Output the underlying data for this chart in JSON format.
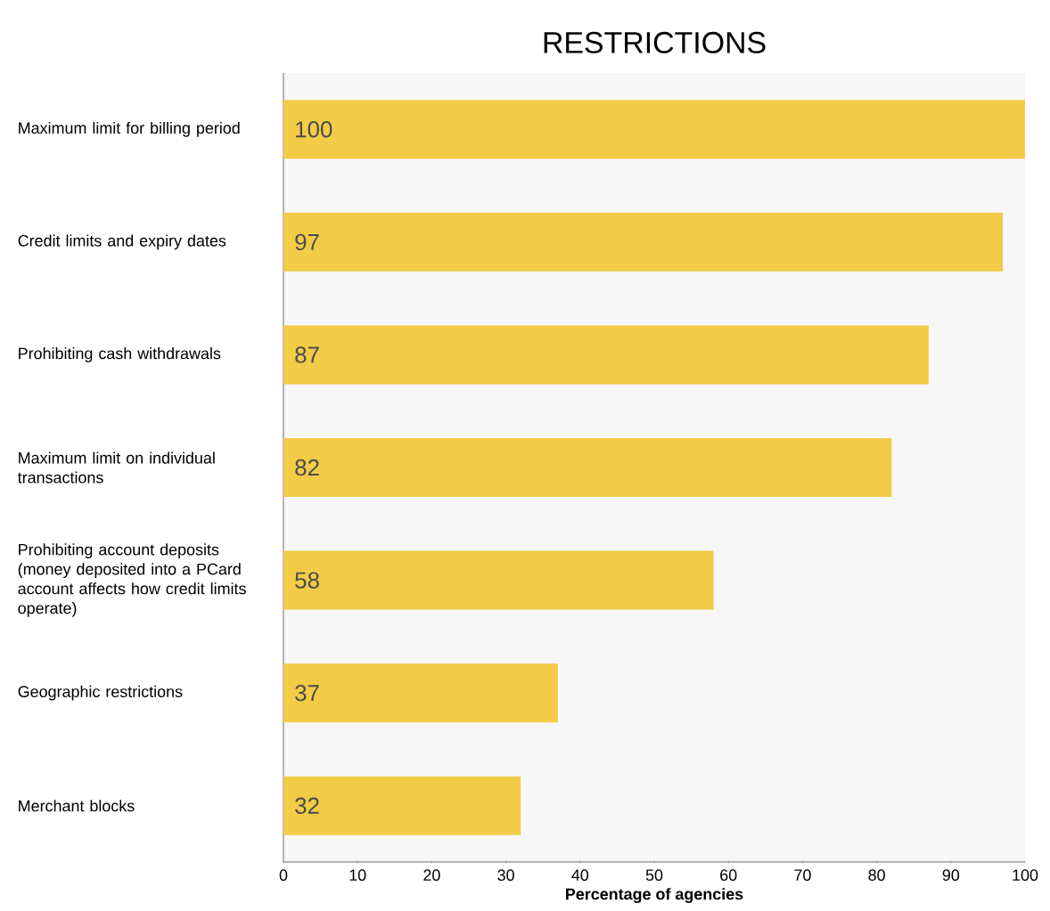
{
  "chart_data": {
    "type": "bar",
    "orientation": "horizontal",
    "title": "RESTRICTIONS",
    "xlabel": "Percentage of agencies",
    "categories": [
      "Maximum limit for billing period",
      "Credit limits and expiry dates",
      "Prohibiting cash withdrawals",
      "Maximum limit on individual transactions",
      "Prohibiting account deposits (money deposited into a PCard account affects how credit limits operate)",
      "Geographic restrictions",
      "Merchant blocks"
    ],
    "values": [
      100,
      97,
      87,
      82,
      58,
      37,
      32
    ],
    "color": "#f2cc47",
    "data_labels": true,
    "xlim": [
      0,
      100
    ],
    "xticks": [
      0,
      10,
      20,
      30,
      40,
      50,
      60,
      70,
      80,
      90,
      100
    ]
  }
}
